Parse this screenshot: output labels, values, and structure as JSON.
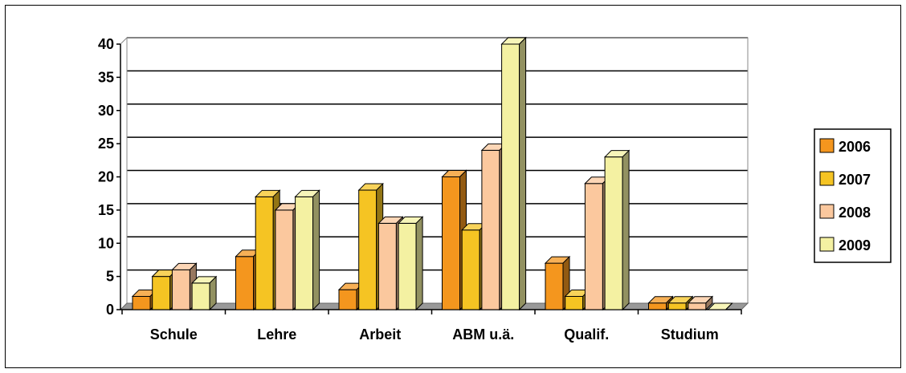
{
  "chart_data": {
    "type": "bar",
    "categories": [
      "Schule",
      "Lehre",
      "Arbeit",
      "ABM u.ä.",
      "Qualif.",
      "Studium"
    ],
    "series": [
      {
        "name": "2006",
        "values": [
          2,
          8,
          3,
          20,
          7,
          1
        ]
      },
      {
        "name": "2007",
        "values": [
          5,
          17,
          18,
          12,
          2,
          1
        ]
      },
      {
        "name": "2008",
        "values": [
          6,
          15,
          13,
          24,
          19,
          1
        ]
      },
      {
        "name": "2009",
        "values": [
          4,
          17,
          13,
          40,
          23,
          0
        ]
      }
    ],
    "colors": [
      "#F4961E",
      "#F5C423",
      "#FBC89E",
      "#F4F1A2"
    ],
    "ylim": [
      0,
      40
    ],
    "yticks": [
      0,
      5,
      10,
      15,
      20,
      25,
      30,
      35,
      40
    ],
    "title": "",
    "xlabel": "",
    "ylabel": "",
    "grid": true,
    "legend": "right"
  }
}
